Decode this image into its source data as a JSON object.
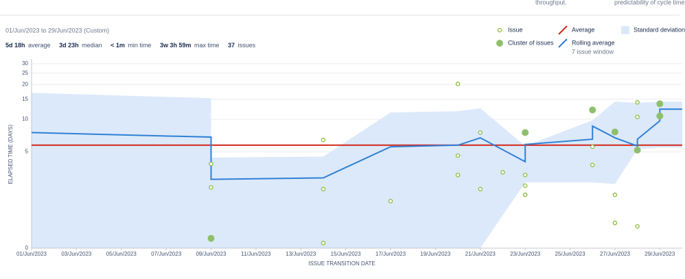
{
  "top_notes": [
    "throughput.",
    "predictability of cycle time."
  ],
  "date_range": "01/Jun/2023 to 29/Jun/2023 (Custom)",
  "stats": [
    {
      "value": "5d 18h",
      "label": "average"
    },
    {
      "value": "3d 23h",
      "label": "median"
    },
    {
      "value": "< 1m",
      "label": "min time"
    },
    {
      "value": "3w 3h 59m",
      "label": "max time"
    },
    {
      "value": "37",
      "label": "issues"
    }
  ],
  "chart_data": {
    "type": "scatter",
    "x_label": "ISSUE TRANSITION DATE",
    "y_label": "ELAPSED TIME (DAYS)",
    "yscale": "log",
    "grid": true,
    "ylim": [
      0,
      32
    ],
    "yticks": [
      0,
      5,
      10,
      15,
      20,
      25,
      30
    ],
    "xlim": [
      "2023-06-01",
      "2023-06-30"
    ],
    "xticks": [
      {
        "value": "2023-06-01",
        "label": "01/Jun/2023"
      },
      {
        "value": "2023-06-03",
        "label": "03/Jun/2023"
      },
      {
        "value": "2023-06-05",
        "label": "05/Jun/2023"
      },
      {
        "value": "2023-06-07",
        "label": "07/Jun/2023"
      },
      {
        "value": "2023-06-09",
        "label": "09/Jun/2023"
      },
      {
        "value": "2023-06-11",
        "label": "11/Jun/2023"
      },
      {
        "value": "2023-06-13",
        "label": "13/Jun/2023"
      },
      {
        "value": "2023-06-15",
        "label": "15/Jun/2023"
      },
      {
        "value": "2023-06-17",
        "label": "17/Jun/2023"
      },
      {
        "value": "2023-06-19",
        "label": "19/Jun/2023"
      },
      {
        "value": "2023-06-21",
        "label": "21/Jun/2023"
      },
      {
        "value": "2023-06-23",
        "label": "23/Jun/2023"
      },
      {
        "value": "2023-06-25",
        "label": "25/Jun/2023"
      },
      {
        "value": "2023-06-27",
        "label": "27/Jun/2023"
      },
      {
        "value": "2023-06-29",
        "label": "29/Jun/2023"
      }
    ],
    "band": {
      "name": "Standard deviation",
      "color": "#dce9fa",
      "x": [
        "2023-06-01",
        "2023-06-09",
        "2023-06-09",
        "2023-06-14",
        "2023-06-17",
        "2023-06-20",
        "2023-06-21",
        "2023-06-23",
        "2023-06-26",
        "2023-06-27",
        "2023-06-28",
        "2023-06-29",
        "2023-06-30"
      ],
      "upper": [
        17.0,
        15.3,
        4.4,
        4.5,
        11.5,
        11.8,
        12.5,
        5.7,
        9.8,
        14.3,
        13.9,
        14.3,
        14.3
      ],
      "lower": [
        0,
        0,
        0,
        0,
        0,
        0,
        0,
        2.4,
        2.4,
        2.3,
        5.3,
        5.5,
        5.5
      ]
    },
    "average": {
      "name": "Average",
      "color": "#d0271d",
      "value": 5.8
    },
    "rolling": {
      "name": "Rolling average",
      "subtitle": "7 issue window",
      "color": "#2f7fd6",
      "x": [
        "2023-06-01",
        "2023-06-09",
        "2023-06-09",
        "2023-06-14",
        "2023-06-17",
        "2023-06-20",
        "2023-06-21",
        "2023-06-23",
        "2023-06-23",
        "2023-06-23",
        "2023-06-26",
        "2023-06-26",
        "2023-06-27",
        "2023-06-28",
        "2023-06-28",
        "2023-06-29",
        "2023-06-29",
        "2023-06-29",
        "2023-06-30"
      ],
      "values": [
        7.6,
        6.9,
        2.6,
        2.7,
        5.6,
        5.8,
        6.8,
        4.0,
        4.0,
        5.9,
        6.6,
        8.7,
        6.8,
        5.7,
        6.6,
        9.7,
        9.9,
        12.3,
        12.3
      ]
    },
    "series": [
      {
        "name": "Issue",
        "color": "#8dbb3b",
        "filled": false,
        "x": [
          "2023-06-09",
          "2023-06-09",
          "2023-06-14",
          "2023-06-14",
          "2023-06-14",
          "2023-06-17",
          "2023-06-20",
          "2023-06-21",
          "2023-06-20",
          "2023-06-20",
          "2023-06-22",
          "2023-06-21",
          "2023-06-23",
          "2023-06-23",
          "2023-06-23",
          "2023-06-26",
          "2023-06-26",
          "2023-06-27",
          "2023-06-27",
          "2023-06-28",
          "2023-06-28",
          "2023-06-28"
        ],
        "values": [
          3.8,
          2.1,
          6.5,
          2.0,
          0.1,
          1.4,
          20.3,
          7.6,
          4.6,
          2.9,
          3.1,
          2.0,
          2.2,
          2.9,
          1.7,
          5.6,
          3.7,
          1.7,
          0.6,
          14.1,
          10.5,
          0.5
        ]
      },
      {
        "name": "Cluster of issues",
        "color": "#8fbf6c",
        "filled": true,
        "x": [
          "2023-06-09",
          "2023-06-23",
          "2023-06-26",
          "2023-06-27",
          "2023-06-28",
          "2023-06-29",
          "2023-06-29"
        ],
        "values": [
          0.2,
          7.6,
          12.1,
          7.7,
          5.2,
          13.7,
          10.7
        ]
      }
    ]
  }
}
